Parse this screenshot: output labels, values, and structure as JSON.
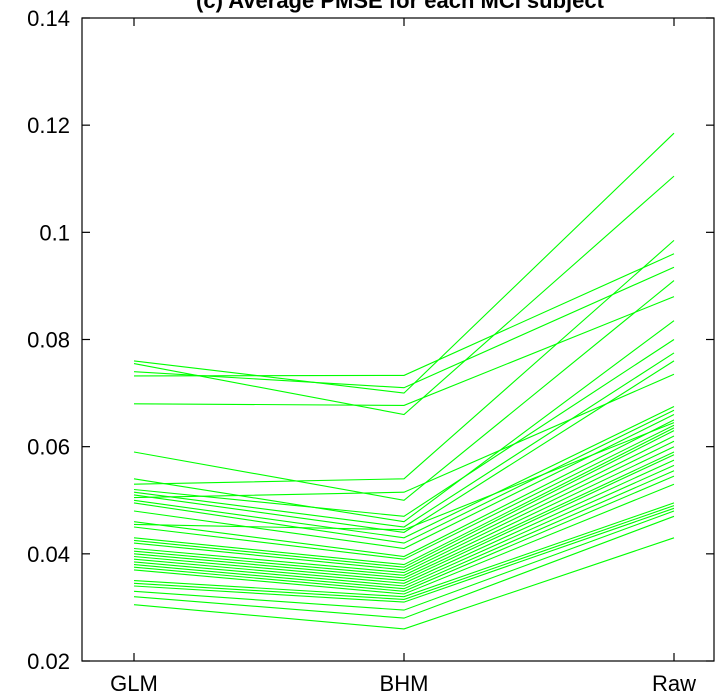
{
  "chart_data": {
    "type": "line",
    "title": "(c) Average PMSE for each MCI subject",
    "xlabel": "",
    "ylabel": "",
    "categories": [
      "GLM",
      "BHM",
      "Raw"
    ],
    "ylim": [
      0.02,
      0.14
    ],
    "yticks": [
      "0.02",
      "0.04",
      "0.06",
      "0.08",
      "0.1",
      "0.12",
      "0.14"
    ],
    "ytick_values": [
      0.02,
      0.04,
      0.06,
      0.08,
      0.1,
      0.12,
      0.14
    ],
    "grid": false,
    "line_color": "#00ff00",
    "series": [
      {
        "values": [
          0.076,
          0.07,
          0.1185
        ]
      },
      {
        "values": [
          0.0755,
          0.066,
          0.1105
        ]
      },
      {
        "values": [
          0.074,
          0.071,
          0.0935
        ]
      },
      {
        "values": [
          0.0732,
          0.0733,
          0.096
        ]
      },
      {
        "values": [
          0.068,
          0.0677,
          0.088
        ]
      },
      {
        "values": [
          0.059,
          0.05,
          0.091
        ]
      },
      {
        "values": [
          0.054,
          0.046,
          0.0835
        ]
      },
      {
        "values": [
          0.053,
          0.054,
          0.0985
        ]
      },
      {
        "values": [
          0.052,
          0.047,
          0.08
        ]
      },
      {
        "values": [
          0.0515,
          0.045,
          0.0775
        ]
      },
      {
        "values": [
          0.051,
          0.044,
          0.076
        ]
      },
      {
        "values": [
          0.0505,
          0.0515,
          0.0735
        ]
      },
      {
        "values": [
          0.05,
          0.043,
          0.0675
        ]
      },
      {
        "values": [
          0.0495,
          0.042,
          0.0668
        ]
      },
      {
        "values": [
          0.048,
          0.041,
          0.066
        ]
      },
      {
        "values": [
          0.046,
          0.0395,
          0.065
        ]
      },
      {
        "values": [
          0.0455,
          0.0445,
          0.0645
        ]
      },
      {
        "values": [
          0.045,
          0.039,
          0.064
        ]
      },
      {
        "values": [
          0.043,
          0.038,
          0.0635
        ]
      },
      {
        "values": [
          0.0425,
          0.0375,
          0.063
        ]
      },
      {
        "values": [
          0.042,
          0.037,
          0.062
        ]
      },
      {
        "values": [
          0.041,
          0.0365,
          0.061
        ]
      },
      {
        "values": [
          0.0405,
          0.036,
          0.06
        ]
      },
      {
        "values": [
          0.04,
          0.0355,
          0.059
        ]
      },
      {
        "values": [
          0.0395,
          0.035,
          0.0585
        ]
      },
      {
        "values": [
          0.039,
          0.0345,
          0.0575
        ]
      },
      {
        "values": [
          0.0385,
          0.034,
          0.0565
        ]
      },
      {
        "values": [
          0.038,
          0.0335,
          0.0555
        ]
      },
      {
        "values": [
          0.0375,
          0.033,
          0.0545
        ]
      },
      {
        "values": [
          0.037,
          0.0325,
          0.053
        ]
      },
      {
        "values": [
          0.035,
          0.032,
          0.0495
        ]
      },
      {
        "values": [
          0.0345,
          0.0315,
          0.049
        ]
      },
      {
        "values": [
          0.034,
          0.031,
          0.0485
        ]
      },
      {
        "values": [
          0.033,
          0.0295,
          0.048
        ]
      },
      {
        "values": [
          0.032,
          0.028,
          0.047
        ]
      },
      {
        "values": [
          0.0305,
          0.026,
          0.043
        ]
      }
    ]
  }
}
